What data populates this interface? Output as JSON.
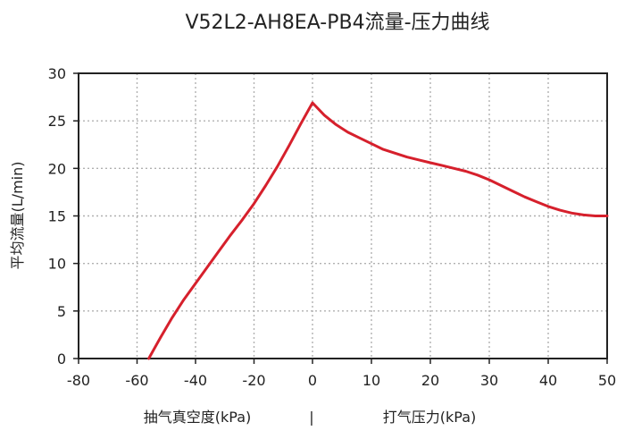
{
  "chart_data": {
    "type": "line",
    "title": "V52L2-AH8EA-PB4流量-压力曲线",
    "ylabel": "平均流量(L/min)",
    "xlabel_left": "抽气真空度(kPa)",
    "xlabel_separator": "|",
    "xlabel_right": "打气压力(kPa)",
    "xlim": [
      -80,
      50
    ],
    "ylim": [
      0,
      30
    ],
    "xticks": [
      -80,
      -60,
      -40,
      -20,
      0,
      10,
      20,
      30,
      40,
      50
    ],
    "yticks": [
      0,
      5,
      10,
      15,
      20,
      25,
      30
    ],
    "grid": true,
    "series": [
      {
        "color": "#d6202c",
        "x": [
          -56,
          -52,
          -48,
          -44,
          -40,
          -36,
          -32,
          -28,
          -24,
          -20,
          -16,
          -12,
          -8,
          -4,
          0,
          2,
          4,
          6,
          8,
          10,
          12,
          14,
          16,
          18,
          20,
          22,
          24,
          26,
          28,
          30,
          32,
          34,
          36,
          38,
          40,
          42,
          44,
          46,
          48,
          50
        ],
        "y": [
          0,
          2.2,
          4.3,
          6.2,
          7.9,
          9.6,
          11.3,
          13.0,
          14.6,
          16.3,
          18.2,
          20.2,
          22.4,
          24.7,
          26.9,
          25.6,
          24.6,
          23.8,
          23.2,
          22.6,
          22.0,
          21.6,
          21.2,
          20.9,
          20.6,
          20.3,
          20.0,
          19.7,
          19.3,
          18.8,
          18.2,
          17.6,
          17.0,
          16.5,
          16.0,
          15.6,
          15.3,
          15.1,
          15.0,
          15.0
        ]
      }
    ]
  }
}
